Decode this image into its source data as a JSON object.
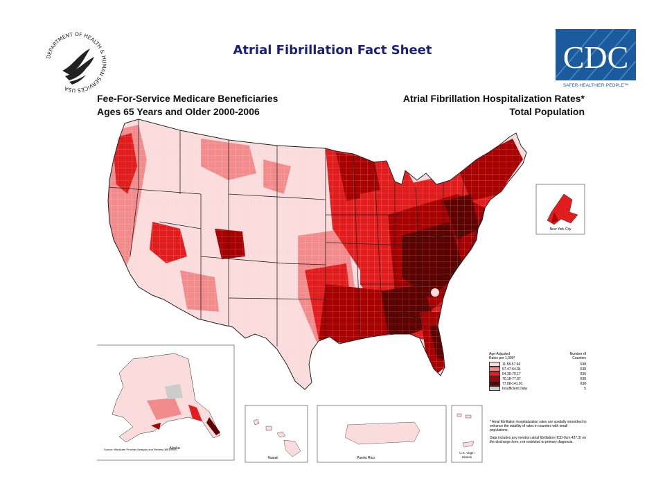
{
  "header": {
    "title": "Atrial Fibrillation Fact Sheet",
    "subtitle_left_line1": "Fee-For-Service Medicare Beneficiaries",
    "subtitle_left_line2": "Ages 65 Years and Older 2000-2006",
    "subtitle_right_line1": "Atrial Fibrillation Hospitalization Rates*",
    "subtitle_right_line2": "Total Population"
  },
  "logos": {
    "hhs_text": "DEPARTMENT OF HEALTH & HUMAN SERVICES USA",
    "cdc_text": "CDC",
    "cdc_tagline": "SAFER·HEALTHIER·PEOPLE™"
  },
  "map": {
    "inset_nyc": "New York City",
    "inset_alaska": "Alaska",
    "inset_hawaii": "Hawaii",
    "inset_puerto_rico": "Puerto Rico",
    "inset_usvi_line1": "U.S. Virgin",
    "inset_usvi_line2": "Islands"
  },
  "legend": {
    "header_left_line1": "Age-Adjusted",
    "header_left_line2": "Rates per 1,000*",
    "header_right_line1": "Number of",
    "header_right_line2": "Counties",
    "items": [
      {
        "label": "11.58-57.46",
        "count": "638",
        "color": "#fbdcdc"
      },
      {
        "label": "57.47-64.34",
        "count": "638",
        "color": "#f28b8b"
      },
      {
        "label": "64.35-70.17",
        "count": "636",
        "color": "#e21d1d"
      },
      {
        "label": "70.18-77.07",
        "count": "638",
        "color": "#a80000"
      },
      {
        "label": "77.08-141.91",
        "count": "638",
        "color": "#5e0000"
      },
      {
        "label": "Insufficient Data",
        "count": "5",
        "color": "#cccccc"
      }
    ]
  },
  "footnotes": {
    "note1": "* Atrial fibrillation hospitalization rates are spatially smoothed to enhance the stability of rates in counties with small populations.",
    "note2": "Data includes any mention atrial fibrillation (ICD-9cm 427.3) on the discharge form, not restricted to primary diagnosis."
  },
  "source": "Source: Medicare Provider Analysis and Review (MEDPAR)"
}
